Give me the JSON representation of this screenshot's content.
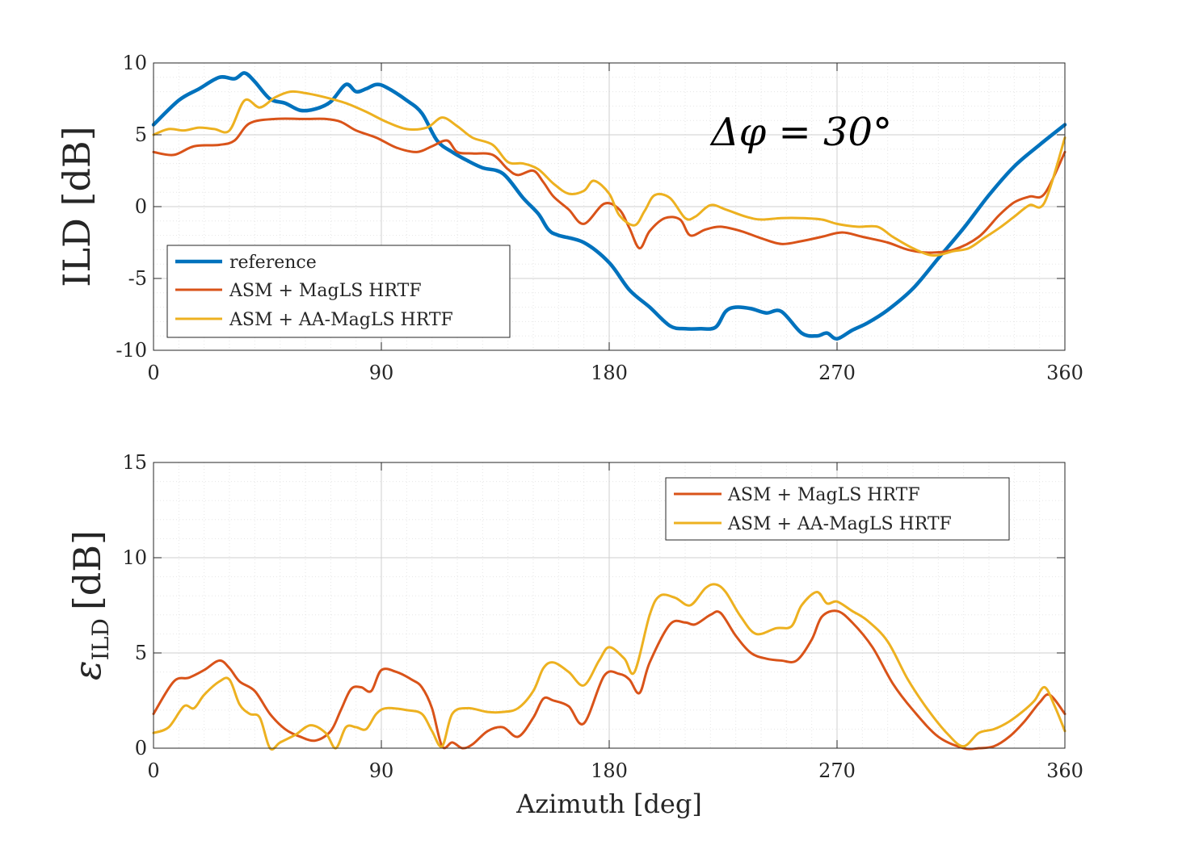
{
  "colors": {
    "reference": "#0072BD",
    "magls": "#D95319",
    "aamagls": "#EDB120",
    "axis": "#262626",
    "grid": "#cfcfcf",
    "minor_grid": "#e6e6e6"
  },
  "chart_data": [
    {
      "type": "line",
      "ylabel": "ILD [dB]",
      "xlabel": "",
      "annotation": "Δφ = 30°",
      "xlim": [
        0,
        360
      ],
      "ylim": [
        -10,
        10
      ],
      "xticks": [
        0,
        90,
        180,
        270,
        360
      ],
      "xtick_labels": [
        "0",
        "90",
        "180",
        "270",
        "360"
      ],
      "yticks": [
        -10,
        -5,
        0,
        5,
        10
      ],
      "ytick_labels": [
        "-10",
        "-5",
        "0",
        "5",
        "10"
      ],
      "grid": true,
      "legend_position": "bottom-left",
      "series": [
        {
          "name": "reference",
          "color_key": "reference",
          "x": [
            0,
            10,
            18,
            26,
            32,
            36,
            40,
            46,
            52,
            58,
            64,
            70,
            76,
            80,
            84,
            88,
            92,
            100,
            106,
            112,
            118,
            124,
            130,
            138,
            146,
            152,
            156,
            160,
            170,
            180,
            188,
            196,
            204,
            210,
            216,
            222,
            226,
            230,
            236,
            242,
            248,
            256,
            262,
            266,
            270,
            276,
            282,
            290,
            300,
            310,
            320,
            330,
            340,
            350,
            360
          ],
          "y": [
            5.7,
            7.4,
            8.2,
            9.0,
            8.9,
            9.3,
            8.7,
            7.5,
            7.2,
            6.7,
            6.8,
            7.3,
            8.5,
            8.0,
            8.2,
            8.5,
            8.3,
            7.4,
            6.5,
            4.6,
            3.8,
            3.2,
            2.7,
            2.3,
            0.6,
            -0.5,
            -1.6,
            -2.0,
            -2.5,
            -3.9,
            -5.8,
            -7.0,
            -8.3,
            -8.5,
            -8.5,
            -8.4,
            -7.3,
            -7.0,
            -7.1,
            -7.4,
            -7.3,
            -8.8,
            -9.0,
            -8.8,
            -9.2,
            -8.6,
            -8.1,
            -7.2,
            -5.7,
            -3.6,
            -1.5,
            0.8,
            2.8,
            4.3,
            5.7
          ]
        },
        {
          "name": "ASM + MagLS HRTF",
          "color_key": "magls",
          "x": [
            0,
            8,
            16,
            26,
            32,
            38,
            48,
            60,
            68,
            74,
            80,
            88,
            96,
            104,
            110,
            116,
            120,
            126,
            134,
            140,
            144,
            150,
            154,
            158,
            164,
            170,
            178,
            184,
            188,
            192,
            196,
            202,
            208,
            212,
            218,
            224,
            232,
            240,
            248,
            256,
            264,
            272,
            280,
            290,
            298,
            306,
            316,
            326,
            334,
            340,
            346,
            352,
            360
          ],
          "y": [
            3.8,
            3.6,
            4.2,
            4.3,
            4.6,
            5.8,
            6.1,
            6.1,
            6.1,
            5.9,
            5.3,
            4.8,
            4.1,
            3.8,
            4.2,
            4.6,
            3.8,
            3.7,
            3.6,
            2.6,
            2.2,
            2.5,
            1.7,
            0.7,
            -0.2,
            -1.2,
            0.2,
            -0.2,
            -1.5,
            -2.9,
            -1.7,
            -0.8,
            -0.9,
            -2.0,
            -1.6,
            -1.4,
            -1.7,
            -2.2,
            -2.6,
            -2.4,
            -2.1,
            -1.8,
            -2.1,
            -2.5,
            -3.0,
            -3.2,
            -3.0,
            -2.1,
            -0.6,
            0.3,
            0.7,
            0.9,
            3.8
          ]
        },
        {
          "name": "ASM + AA-MagLS HRTF",
          "color_key": "aamagls",
          "x": [
            0,
            6,
            12,
            18,
            24,
            30,
            36,
            42,
            48,
            54,
            60,
            68,
            76,
            84,
            92,
            100,
            108,
            114,
            120,
            126,
            134,
            140,
            146,
            152,
            158,
            164,
            170,
            174,
            180,
            184,
            190,
            194,
            198,
            204,
            210,
            214,
            220,
            226,
            234,
            240,
            248,
            256,
            264,
            270,
            278,
            286,
            292,
            300,
            308,
            316,
            322,
            328,
            334,
            340,
            346,
            352,
            360
          ],
          "y": [
            5.0,
            5.4,
            5.3,
            5.5,
            5.4,
            5.3,
            7.4,
            6.9,
            7.6,
            8.0,
            7.9,
            7.6,
            7.2,
            6.6,
            5.9,
            5.4,
            5.5,
            6.2,
            5.6,
            4.8,
            4.3,
            3.1,
            3.0,
            2.6,
            1.6,
            0.9,
            1.1,
            1.8,
            0.9,
            -0.6,
            -1.3,
            -0.3,
            0.8,
            0.6,
            -0.8,
            -0.7,
            0.1,
            -0.2,
            -0.7,
            -0.9,
            -0.8,
            -0.8,
            -0.9,
            -1.2,
            -1.4,
            -1.4,
            -2.1,
            -2.9,
            -3.4,
            -3.1,
            -2.9,
            -2.2,
            -1.5,
            -0.7,
            0.1,
            0.3,
            4.8
          ]
        }
      ]
    },
    {
      "type": "line",
      "ylabel_main": "ε",
      "ylabel_sub": "ILD",
      "ylabel_unit": "[dB]",
      "xlabel": "Azimuth [deg]",
      "xlim": [
        0,
        360
      ],
      "ylim": [
        0,
        15
      ],
      "xticks": [
        0,
        90,
        180,
        270,
        360
      ],
      "xtick_labels": [
        "0",
        "90",
        "180",
        "270",
        "360"
      ],
      "yticks": [
        0,
        5,
        10,
        15
      ],
      "ytick_labels": [
        "0",
        "5",
        "10",
        "15"
      ],
      "grid": true,
      "legend_position": "top-right",
      "series": [
        {
          "name": "ASM + MagLS HRTF",
          "color_key": "magls",
          "x": [
            0,
            8,
            14,
            20,
            26,
            30,
            34,
            40,
            46,
            52,
            58,
            64,
            70,
            74,
            78,
            82,
            86,
            90,
            96,
            102,
            106,
            110,
            114,
            118,
            122,
            126,
            132,
            138,
            144,
            150,
            154,
            158,
            164,
            170,
            178,
            184,
            188,
            192,
            196,
            204,
            210,
            214,
            220,
            224,
            230,
            236,
            242,
            248,
            254,
            260,
            264,
            270,
            276,
            284,
            292,
            300,
            310,
            320,
            326,
            332,
            338,
            344,
            350,
            354,
            360
          ],
          "y": [
            1.8,
            3.5,
            3.7,
            4.1,
            4.6,
            4.2,
            3.5,
            3.0,
            1.8,
            1.0,
            0.6,
            0.4,
            0.9,
            2.0,
            3.1,
            3.2,
            3.0,
            4.1,
            4.0,
            3.6,
            3.2,
            2.1,
            0.1,
            0.3,
            0.0,
            0.2,
            0.9,
            1.1,
            0.6,
            1.6,
            2.6,
            2.5,
            2.2,
            1.3,
            3.8,
            3.9,
            3.6,
            2.9,
            4.5,
            6.5,
            6.6,
            6.5,
            7.0,
            7.1,
            5.9,
            5.0,
            4.7,
            4.6,
            4.6,
            5.7,
            6.9,
            7.2,
            6.6,
            5.3,
            3.4,
            2.0,
            0.6,
            0.0,
            0.0,
            0.1,
            0.6,
            1.4,
            2.4,
            2.8,
            1.8
          ]
        },
        {
          "name": "ASM + AA-MagLS HRTF",
          "color_key": "aamagls",
          "x": [
            0,
            6,
            12,
            16,
            20,
            26,
            30,
            34,
            38,
            42,
            46,
            50,
            56,
            62,
            68,
            72,
            76,
            80,
            84,
            88,
            92,
            100,
            106,
            110,
            114,
            118,
            124,
            132,
            138,
            144,
            150,
            154,
            158,
            164,
            170,
            176,
            180,
            186,
            190,
            196,
            200,
            206,
            212,
            218,
            222,
            226,
            232,
            238,
            246,
            252,
            256,
            262,
            266,
            270,
            276,
            282,
            290,
            298,
            306,
            314,
            320,
            326,
            332,
            338,
            344,
            348,
            352,
            356,
            360
          ],
          "y": [
            0.8,
            1.1,
            2.2,
            2.1,
            2.8,
            3.5,
            3.6,
            2.3,
            1.8,
            1.6,
            0.0,
            0.3,
            0.7,
            1.2,
            0.8,
            0.0,
            1.1,
            1.1,
            1.0,
            1.8,
            2.1,
            2.0,
            1.8,
            0.9,
            0.1,
            1.8,
            2.1,
            1.9,
            1.9,
            2.1,
            3.0,
            4.2,
            4.5,
            4.0,
            3.3,
            4.6,
            5.3,
            4.7,
            4.0,
            7.0,
            8.0,
            7.9,
            7.5,
            8.4,
            8.6,
            8.2,
            6.9,
            6.0,
            6.3,
            6.4,
            7.5,
            8.2,
            7.6,
            7.7,
            7.2,
            6.7,
            5.6,
            3.6,
            2.0,
            0.7,
            0.1,
            0.8,
            1.0,
            1.4,
            2.0,
            2.5,
            3.2,
            2.2,
            0.9
          ]
        }
      ]
    }
  ]
}
